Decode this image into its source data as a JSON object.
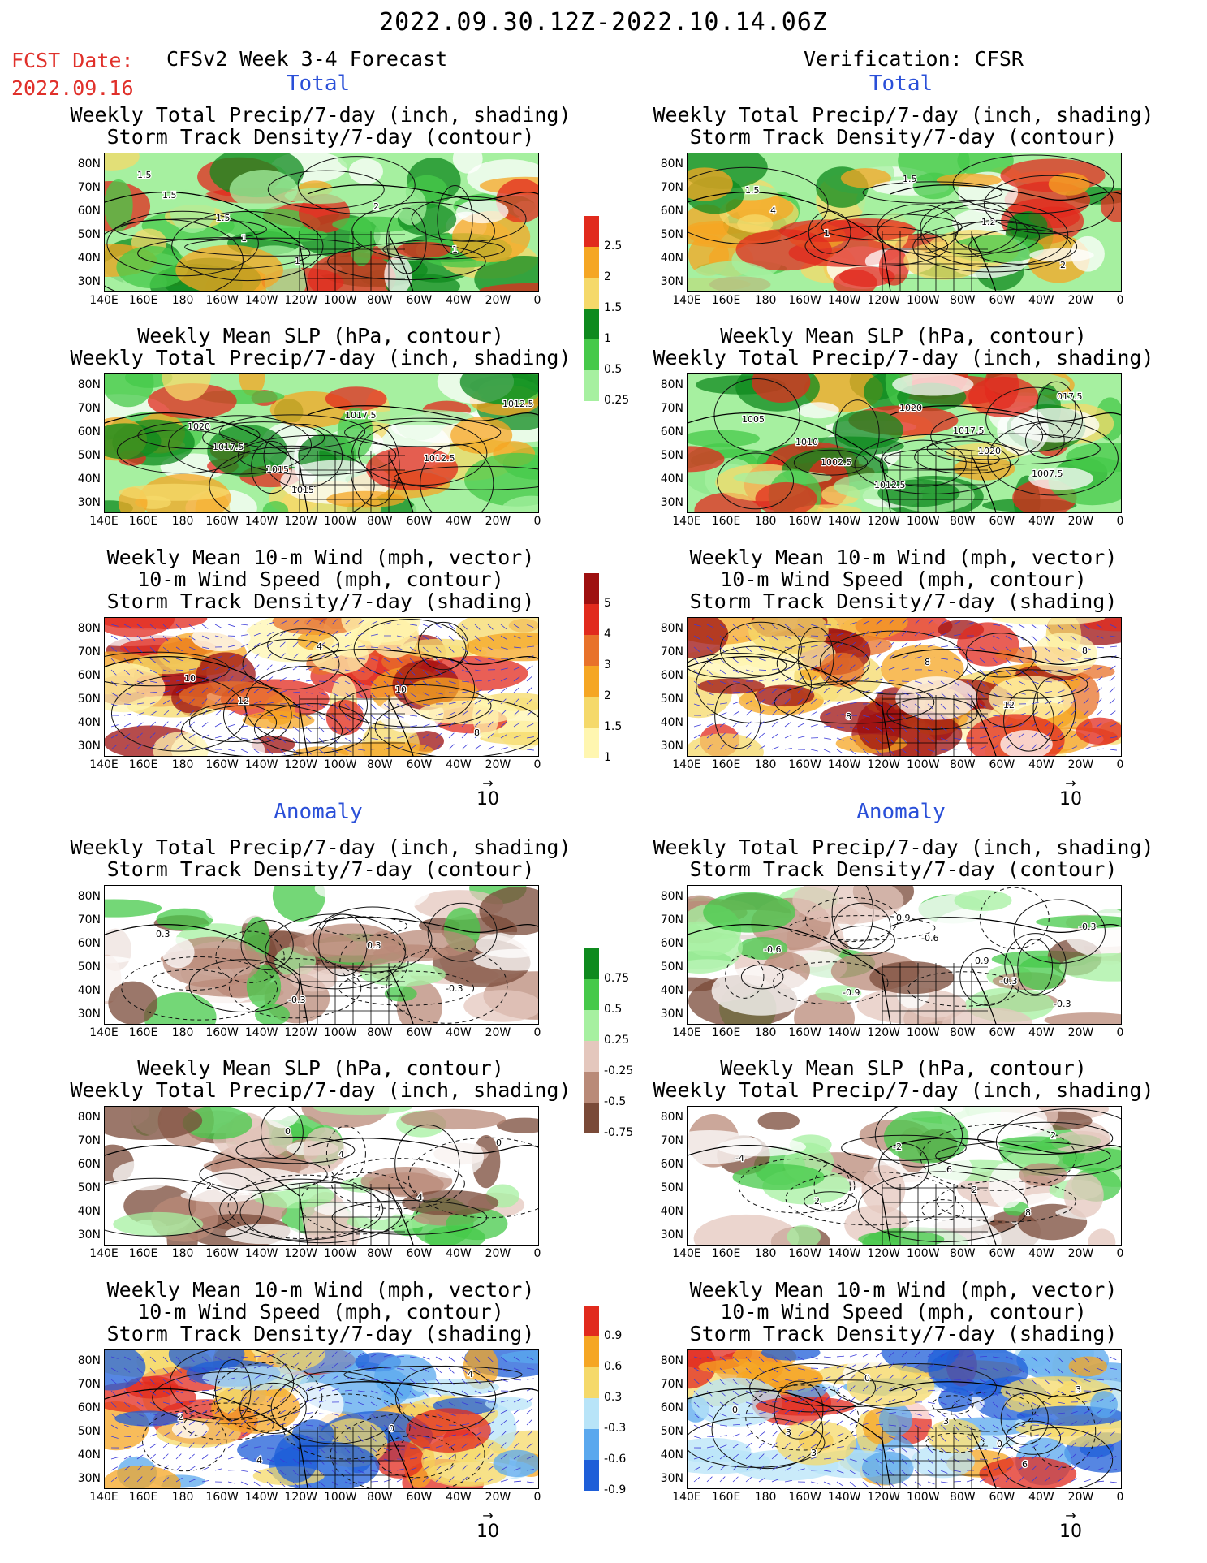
{
  "header": {
    "date_range": "2022.09.30.12Z-2022.10.14.06Z",
    "fcst_date_label": "FCST Date:",
    "fcst_date_value": "2022.09.16",
    "left_title": "CFSv2 Week 3-4 Forecast",
    "right_title": "Verification: CFSR"
  },
  "sections": {
    "total": "Total",
    "anomaly": "Anomaly"
  },
  "panel_titles": {
    "precip_storm": "Weekly Total Precip/7-day (inch, shading)\nStorm Track Density/7-day (contour)",
    "slp_precip": "Weekly Mean SLP (hPa, contour)\nWeekly Total Precip/7-day (inch, shading)",
    "wind_storm": "Weekly Mean 10-m Wind (mph, vector)\n10-m Wind Speed (mph, contour)\nStorm Track Density/7-day (shading)"
  },
  "axes": {
    "lat_labels": [
      "80N",
      "70N",
      "60N",
      "50N",
      "40N",
      "30N"
    ],
    "lon_labels": [
      "140E",
      "160E",
      "180",
      "160W",
      "140W",
      "120W",
      "100W",
      "80W",
      "60W",
      "40W",
      "20W",
      "0"
    ]
  },
  "colorbars": {
    "precip_total": [
      "2.5",
      "2",
      "1.5",
      "1",
      "0.5",
      "0.25"
    ],
    "storm_total": [
      "5",
      "4",
      "3",
      "2",
      "1.5",
      "1"
    ],
    "precip_anom": [
      "0.75",
      "0.5",
      "0.25",
      "-0.25",
      "-0.5",
      "-0.75"
    ],
    "storm_anom": [
      "0.9",
      "0.6",
      "0.3",
      "-0.3",
      "-0.6",
      "-0.9"
    ]
  },
  "vector_reference": "10",
  "contour_labels": {
    "p1": [
      "1.5",
      "1.5",
      "1",
      "2",
      "1",
      "1.5",
      "1"
    ],
    "p2": [
      "1.5",
      "1",
      "1.5",
      "1.2",
      "2",
      "4"
    ],
    "p3": [
      "1020",
      "1015",
      "1017.5",
      "1012.5",
      "1012.5",
      "1017.5",
      "1015"
    ],
    "p4": [
      "1010",
      "1012.5",
      "1017.5",
      "1007.5",
      "1005",
      "1002.5",
      "1020",
      "1020",
      "017.5"
    ],
    "p5": [
      "12",
      "4",
      "10",
      "8",
      "10"
    ],
    "p6": [
      "8",
      "8",
      "12",
      "8"
    ],
    "p7": [
      "-0.3",
      "0.3",
      "-0.3",
      "0.3"
    ],
    "p8": [
      "0.9",
      "0.9",
      "-0.3",
      "-0.6",
      "-0.9",
      "-0.6",
      "-0.3",
      "-0.3"
    ],
    "p9": [
      "4",
      "4",
      "0",
      "2",
      "0"
    ],
    "p10": [
      "6",
      "8",
      "-4",
      "2",
      "-2",
      "2",
      "2"
    ],
    "p11": [
      "0",
      "4",
      "2",
      "4"
    ],
    "p12": [
      "0",
      "3",
      "3",
      "0",
      "3",
      "6",
      "0",
      "3"
    ]
  },
  "colors": {
    "ocean_light_green": "#a6f0a0",
    "green": "#46c94a",
    "dark_green": "#0e8a1e",
    "yellow": "#f5d96a",
    "orange": "#f5a623",
    "red": "#e12a1d",
    "brown_light": "#e4c7bd",
    "brown_mid": "#b98a78",
    "brown_dark": "#7a4a38",
    "blue_light": "#b8e4f8",
    "blue_mid": "#5aa8ee",
    "blue_dark": "#1e5ed8"
  }
}
